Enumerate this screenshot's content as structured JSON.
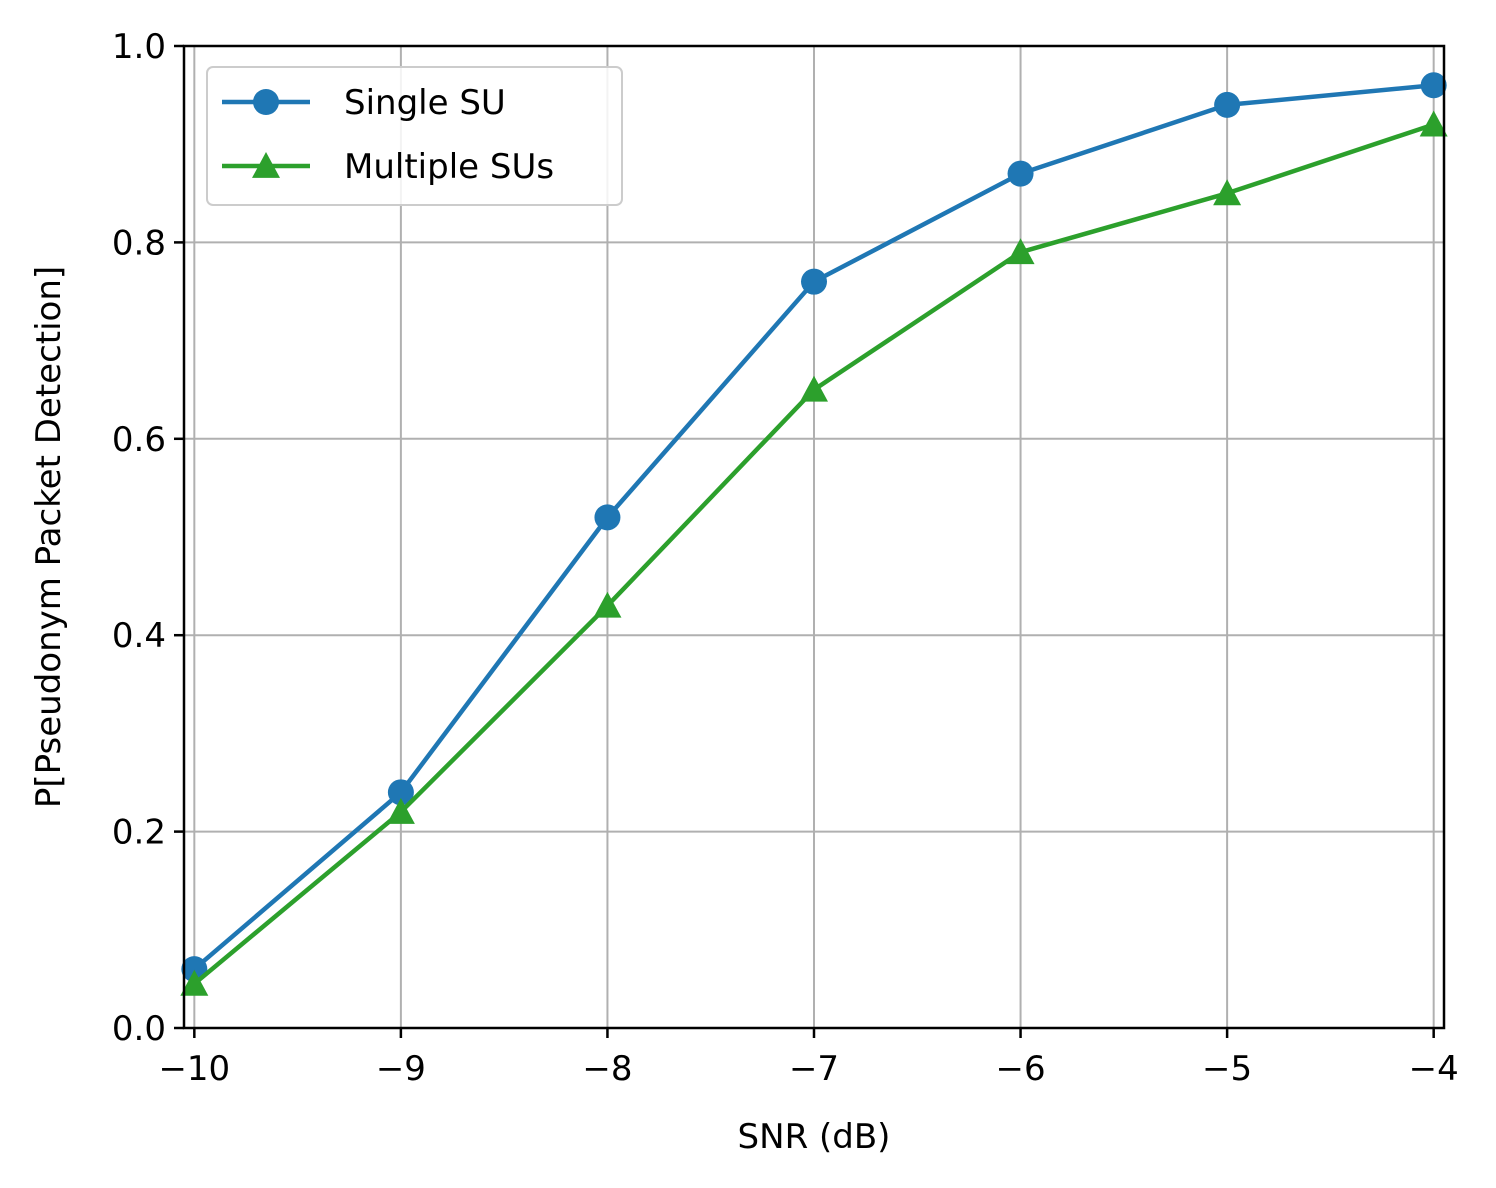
{
  "chart_data": {
    "type": "line",
    "xlabel": "SNR (dB)",
    "ylabel": "P[Pseudonym Packet Detection]",
    "xlim": [
      -10.05,
      -3.95
    ],
    "ylim": [
      0.0,
      1.0
    ],
    "x_ticks": [
      -10,
      -9,
      -8,
      -7,
      -6,
      -5,
      -4
    ],
    "x_tick_labels": [
      "−10",
      "−9",
      "−8",
      "−7",
      "−6",
      "−5",
      "−4"
    ],
    "y_ticks": [
      0.0,
      0.2,
      0.4,
      0.6,
      0.8,
      1.0
    ],
    "y_tick_labels": [
      "0.0",
      "0.2",
      "0.4",
      "0.6",
      "0.8",
      "1.0"
    ],
    "grid": true,
    "legend_position": "upper-left",
    "x": [
      -10,
      -9,
      -8,
      -7,
      -6,
      -5,
      -4
    ],
    "series": [
      {
        "name": "Single SU",
        "marker": "circle",
        "color": "#1f77b4",
        "values": [
          0.06,
          0.24,
          0.52,
          0.76,
          0.87,
          0.94,
          0.96
        ]
      },
      {
        "name": "Multiple SUs",
        "marker": "triangle",
        "color": "#2ca02c",
        "values": [
          0.045,
          0.22,
          0.43,
          0.65,
          0.79,
          0.85,
          0.92
        ]
      }
    ]
  }
}
